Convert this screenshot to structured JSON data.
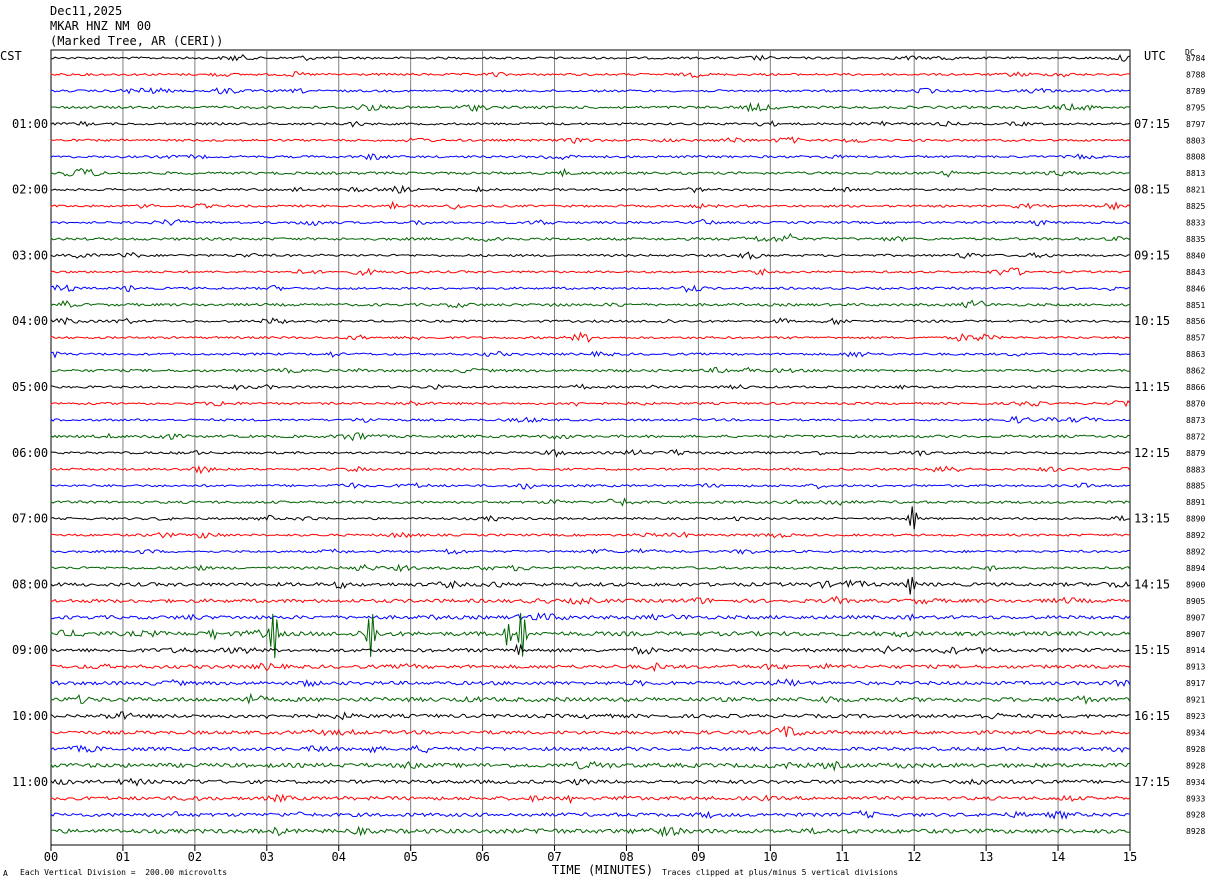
{
  "header": {
    "date": "Dec11,2025",
    "station": "MKAR HNZ NM 00",
    "location": "(Marked Tree, AR (CERI))"
  },
  "left_timezone": "CST",
  "right_timezone": "UTC",
  "dc_label": "DC",
  "footer": {
    "scale_note": "Each Vertical Division =  200.00 microvolts",
    "clip_note": "Traces clipped at plus/minus 5 vertical divisions",
    "corner_mark": "A"
  },
  "colors": {
    "trace_cycle": [
      "#000000",
      "#ff0000",
      "#0000ff",
      "#006400"
    ],
    "grid": "#7f7f7f"
  },
  "chart_data": {
    "type": "line",
    "title": "MKAR HNZ NM 00",
    "xlabel": "TIME (MINUTES)",
    "x_ticks": [
      "00",
      "01",
      "02",
      "03",
      "04",
      "05",
      "06",
      "07",
      "08",
      "09",
      "10",
      "11",
      "12",
      "13",
      "14",
      "15"
    ],
    "xlim": [
      0,
      15
    ],
    "left_hour_labels": [
      "01:00",
      "02:00",
      "03:00",
      "04:00",
      "05:00",
      "06:00",
      "07:00",
      "08:00",
      "09:00",
      "10:00",
      "11:00"
    ],
    "right_hour_labels": [
      "07:15",
      "08:15",
      "09:15",
      "10:15",
      "11:15",
      "12:15",
      "13:15",
      "14:15",
      "15:15",
      "16:15",
      "17:15"
    ],
    "dc_offsets": [
      "8784",
      "8788",
      "8789",
      "8795",
      "8797",
      "8803",
      "8808",
      "8813",
      "8821",
      "8825",
      "8833",
      "8835",
      "8840",
      "8843",
      "8846",
      "8851",
      "8856",
      "8857",
      "8863",
      "8862",
      "8866",
      "8870",
      "8873",
      "8872",
      "8879",
      "8883",
      "8885",
      "8891",
      "8890",
      "8892",
      "8892",
      "8894",
      "8900",
      "8905",
      "8907",
      "8907",
      "8914",
      "8913",
      "8917",
      "8921",
      "8923",
      "8934",
      "8928",
      "8928",
      "8934",
      "8933",
      "8928",
      "8928"
    ],
    "trace_count": 48,
    "trace_interval_minutes": 15,
    "events": [
      {
        "trace": 20,
        "minute": 11.8,
        "amp": 0.5
      },
      {
        "trace": 28,
        "minute": 11.98,
        "amp": 2.6
      },
      {
        "trace": 32,
        "minute": 11.95,
        "amp": 1.8
      },
      {
        "trace": 34,
        "minute": 11.98,
        "amp": 0.6
      },
      {
        "trace": 35,
        "minute": 2.25,
        "amp": 0.9
      },
      {
        "trace": 35,
        "minute": 3.1,
        "amp": 5
      },
      {
        "trace": 35,
        "minute": 4.45,
        "amp": 5
      },
      {
        "trace": 35,
        "minute": 6.35,
        "amp": 2.2
      },
      {
        "trace": 35,
        "minute": 6.55,
        "amp": 5
      },
      {
        "trace": 36,
        "minute": 6.5,
        "amp": 1.2
      },
      {
        "trace": 9,
        "minute": 4.75,
        "amp": 0.8
      },
      {
        "trace": 45,
        "minute": 7.2,
        "amp": 0.8
      }
    ]
  }
}
